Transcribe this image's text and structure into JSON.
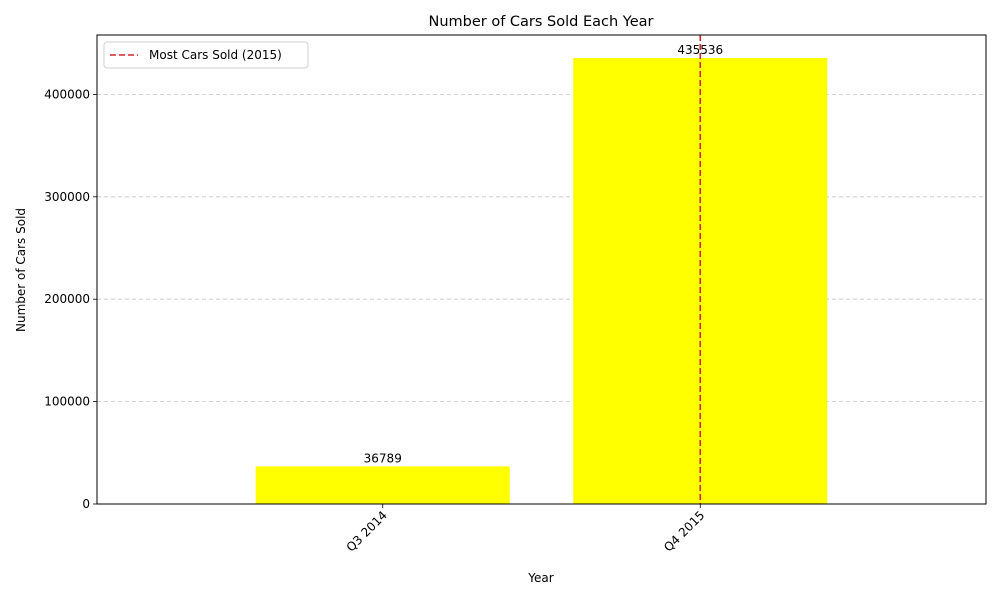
{
  "chart_data": {
    "type": "bar",
    "title": "Number of Cars Sold Each Year",
    "xlabel": "Year",
    "ylabel": "Number of Cars Sold",
    "categories": [
      "Q3 2014",
      "Q4 2015"
    ],
    "values": [
      36789,
      435536
    ],
    "ylim": [
      0,
      458000
    ],
    "yticks": [
      0,
      100000,
      200000,
      300000,
      400000
    ],
    "grid": "y-dashed",
    "bar_color": "#ffff00",
    "reference_line": {
      "category": "Q4 2015",
      "label": "Most Cars Sold (2015)",
      "color": "#d62728",
      "style": "dashed"
    },
    "legend": {
      "placement": "top-left",
      "entries": [
        "Most Cars Sold (2015)"
      ]
    }
  }
}
